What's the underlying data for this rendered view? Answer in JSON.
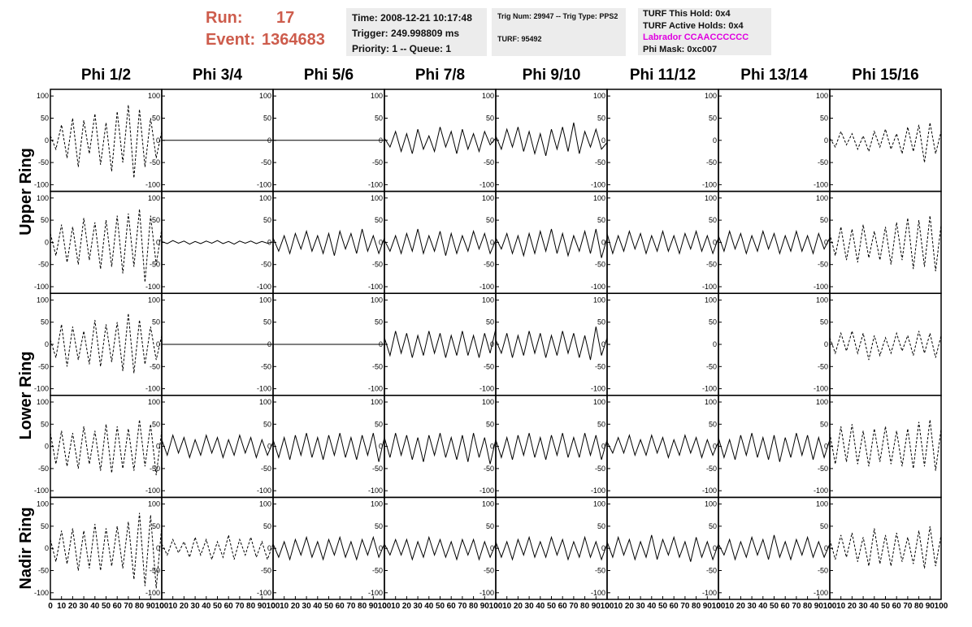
{
  "header": {
    "run_label": "Run:",
    "run": "17",
    "event_label": "Event:",
    "event": "1364683",
    "time": "Time: 2008-12-21 10:17:48",
    "trigger": "Trigger: 249.998809 ms",
    "priority": "Priority: 1 -- Queue: 1",
    "trig_num": "Trig Num: 29947 -- Trig Type: PPS2",
    "turf": "TURF: 95492",
    "hold": "TURF This Hold: 0x4",
    "active_holds": "TURF Active Holds: 0x4",
    "labrador": "Labrador CCAACCCCCC",
    "phi_mask": "Phi Mask: 0xc007"
  },
  "ring_labels": [
    "Upper Ring",
    "Lower Ring",
    "Nadir Ring"
  ],
  "chart_data": {
    "type": "line",
    "columns": [
      "Phi 1/2",
      "Phi 3/4",
      "Phi 5/6",
      "Phi 7/8",
      "Phi 9/10",
      "Phi 11/12",
      "Phi 13/14",
      "Phi 15/16"
    ],
    "xlim": [
      0,
      100
    ],
    "ylim": [
      -115,
      115
    ],
    "xticks": [
      0,
      10,
      20,
      30,
      40,
      50,
      60,
      70,
      80,
      90,
      100
    ],
    "yticks": [
      -100,
      -50,
      0,
      50,
      100
    ],
    "x": [
      0,
      5,
      10,
      15,
      20,
      25,
      30,
      35,
      40,
      45,
      50,
      55,
      60,
      65,
      70,
      75,
      80,
      85,
      90,
      95,
      100
    ],
    "panels": [
      [
        {
          "style": "dashed",
          "values": [
            10,
            -20,
            35,
            -40,
            50,
            -60,
            45,
            -30,
            60,
            -55,
            40,
            -70,
            65,
            -50,
            80,
            -85,
            70,
            -60,
            50,
            -40,
            20
          ]
        },
        {
          "style": "solid",
          "values": [
            0,
            0,
            0,
            0,
            0,
            0,
            0,
            0,
            0,
            0,
            0,
            0,
            0,
            0,
            0,
            0,
            0,
            0,
            0,
            0,
            0
          ]
        },
        {
          "style": "solid",
          "values": [
            0,
            0,
            0,
            0,
            0,
            0,
            0,
            0,
            0,
            0,
            0,
            0,
            0,
            0,
            0,
            0,
            0,
            0,
            0,
            0,
            0
          ]
        },
        {
          "style": "solid",
          "values": [
            5,
            -15,
            20,
            -25,
            15,
            -30,
            25,
            -20,
            10,
            -25,
            30,
            -15,
            20,
            -30,
            25,
            -20,
            15,
            -25,
            20,
            -10,
            5
          ]
        },
        {
          "style": "solid",
          "values": [
            10,
            -20,
            25,
            -15,
            30,
            -25,
            20,
            -30,
            15,
            -35,
            25,
            -20,
            30,
            -25,
            40,
            -30,
            20,
            -15,
            25,
            -20,
            -5
          ]
        },
        {
          "style": "solid",
          "values": [
            null,
            null,
            null,
            null,
            null,
            null,
            null,
            null,
            null,
            null,
            null,
            null,
            null,
            null,
            null,
            null,
            null,
            null,
            null,
            null,
            null
          ]
        },
        {
          "style": "solid",
          "values": [
            null,
            null,
            null,
            null,
            null,
            null,
            null,
            null,
            null,
            null,
            null,
            null,
            null,
            null,
            null,
            null,
            null,
            null,
            null,
            null,
            null
          ]
        },
        {
          "style": "dashed",
          "values": [
            5,
            -15,
            20,
            -10,
            15,
            -20,
            10,
            -25,
            20,
            -15,
            25,
            -20,
            15,
            -30,
            30,
            -25,
            35,
            -50,
            40,
            -30,
            20
          ]
        }
      ],
      [
        {
          "style": "dashed",
          "values": [
            20,
            -30,
            40,
            -45,
            35,
            -50,
            55,
            -40,
            45,
            -60,
            50,
            -55,
            60,
            -70,
            65,
            -55,
            75,
            -90,
            60,
            -50,
            30
          ]
        },
        {
          "style": "solid",
          "values": [
            2,
            -3,
            4,
            -2,
            3,
            -4,
            2,
            -3,
            3,
            -2,
            4,
            -3,
            2,
            -4,
            3,
            -2,
            3,
            -3,
            2,
            -2,
            1
          ]
        },
        {
          "style": "solid",
          "values": [
            10,
            -20,
            15,
            -25,
            20,
            -15,
            25,
            -20,
            15,
            -25,
            20,
            -30,
            25,
            -15,
            20,
            -25,
            30,
            -20,
            15,
            -25,
            10
          ]
        },
        {
          "style": "solid",
          "values": [
            5,
            -20,
            15,
            -25,
            20,
            -20,
            30,
            -25,
            15,
            -20,
            25,
            -30,
            20,
            -25,
            15,
            -20,
            25,
            -15,
            20,
            -25,
            5
          ]
        },
        {
          "style": "solid",
          "values": [
            10,
            -15,
            20,
            -25,
            15,
            -30,
            20,
            -25,
            25,
            -20,
            30,
            -25,
            20,
            -30,
            15,
            -20,
            25,
            -25,
            30,
            -35,
            10
          ]
        },
        {
          "style": "solid",
          "values": [
            20,
            -25,
            15,
            -20,
            25,
            -15,
            20,
            -25,
            15,
            -20,
            25,
            -20,
            15,
            -25,
            20,
            -15,
            25,
            -20,
            15,
            -25,
            10
          ]
        },
        {
          "style": "solid",
          "values": [
            15,
            -20,
            25,
            -15,
            20,
            -25,
            15,
            -20,
            25,
            -15,
            20,
            -25,
            15,
            -20,
            25,
            -20,
            15,
            -25,
            20,
            -15,
            10
          ]
        },
        {
          "style": "dashed",
          "values": [
            20,
            -30,
            35,
            -40,
            30,
            -45,
            40,
            -35,
            25,
            -40,
            35,
            -50,
            45,
            -40,
            55,
            -60,
            50,
            -55,
            60,
            -65,
            40
          ]
        }
      ],
      [
        {
          "style": "dashed",
          "values": [
            10,
            -30,
            45,
            -50,
            40,
            -35,
            30,
            -45,
            55,
            -50,
            45,
            -40,
            50,
            -60,
            70,
            -65,
            55,
            -45,
            40,
            -35,
            20
          ]
        },
        {
          "style": "solid",
          "values": [
            0,
            0,
            0,
            0,
            0,
            0,
            0,
            0,
            0,
            0,
            0,
            0,
            0,
            0,
            0,
            0,
            0,
            0,
            0,
            0,
            0
          ]
        },
        {
          "style": "solid",
          "values": [
            0,
            0,
            0,
            0,
            0,
            0,
            0,
            0,
            0,
            0,
            0,
            0,
            0,
            0,
            0,
            0,
            0,
            0,
            0,
            0,
            0
          ]
        },
        {
          "style": "solid",
          "values": [
            15,
            -25,
            30,
            -20,
            25,
            -30,
            20,
            -25,
            30,
            -20,
            25,
            -30,
            20,
            -25,
            30,
            -25,
            20,
            -30,
            25,
            -20,
            35
          ]
        },
        {
          "style": "solid",
          "values": [
            10,
            -20,
            25,
            -30,
            20,
            -25,
            30,
            -20,
            25,
            -30,
            20,
            -25,
            30,
            -20,
            25,
            -30,
            20,
            -35,
            40,
            -25,
            15
          ]
        },
        {
          "style": "solid",
          "values": [
            null,
            null,
            null,
            null,
            null,
            null,
            null,
            null,
            null,
            null,
            null,
            null,
            null,
            null,
            null,
            null,
            null,
            null,
            null,
            null,
            null
          ]
        },
        {
          "style": "solid",
          "values": [
            null,
            null,
            null,
            null,
            null,
            null,
            null,
            null,
            null,
            null,
            null,
            null,
            null,
            null,
            null,
            null,
            null,
            null,
            null,
            null,
            null
          ]
        },
        {
          "style": "dashed",
          "values": [
            15,
            -20,
            25,
            -15,
            30,
            -20,
            25,
            -35,
            20,
            -25,
            15,
            -20,
            25,
            -15,
            20,
            -25,
            30,
            -20,
            25,
            -30,
            20
          ]
        }
      ],
      [
        {
          "style": "dashed",
          "values": [
            30,
            -40,
            35,
            -45,
            30,
            -50,
            45,
            -40,
            35,
            -55,
            50,
            -60,
            45,
            -50,
            40,
            -55,
            60,
            -45,
            50,
            -65,
            35
          ]
        },
        {
          "style": "solid",
          "values": [
            15,
            -20,
            25,
            -15,
            20,
            -25,
            15,
            -20,
            25,
            -15,
            20,
            -25,
            15,
            -20,
            25,
            -15,
            20,
            -25,
            15,
            -20,
            10
          ]
        },
        {
          "style": "solid",
          "values": [
            15,
            -25,
            20,
            -30,
            25,
            -20,
            30,
            -25,
            20,
            -30,
            25,
            -20,
            30,
            -25,
            20,
            -30,
            25,
            -20,
            30,
            -35,
            20
          ]
        },
        {
          "style": "solid",
          "values": [
            20,
            -25,
            30,
            -20,
            25,
            -30,
            20,
            -35,
            25,
            -20,
            30,
            -25,
            20,
            -30,
            25,
            -35,
            30,
            -25,
            20,
            -40,
            15
          ]
        },
        {
          "style": "solid",
          "values": [
            15,
            -25,
            20,
            -30,
            25,
            -20,
            30,
            -25,
            20,
            -30,
            25,
            -20,
            30,
            -25,
            20,
            -25,
            30,
            -20,
            25,
            -30,
            15
          ]
        },
        {
          "style": "solid",
          "values": [
            10,
            -15,
            20,
            -15,
            25,
            -20,
            15,
            -20,
            25,
            -15,
            20,
            -25,
            15,
            -20,
            25,
            -15,
            20,
            -25,
            15,
            -20,
            10
          ]
        },
        {
          "style": "solid",
          "values": [
            20,
            -25,
            15,
            -30,
            25,
            -20,
            30,
            -25,
            20,
            -30,
            25,
            -35,
            20,
            -25,
            30,
            -20,
            25,
            -30,
            20,
            -25,
            15
          ]
        },
        {
          "style": "dashed",
          "values": [
            30,
            -40,
            45,
            -35,
            50,
            -40,
            35,
            -45,
            40,
            -35,
            45,
            -40,
            35,
            -45,
            40,
            -50,
            55,
            -45,
            60,
            -55,
            40
          ]
        }
      ],
      [
        {
          "style": "dashed",
          "values": [
            20,
            -30,
            40,
            -35,
            45,
            -50,
            40,
            -45,
            55,
            -50,
            45,
            -40,
            50,
            -45,
            60,
            -70,
            80,
            -85,
            75,
            -90,
            50
          ]
        },
        {
          "style": "dashed",
          "values": [
            10,
            -15,
            20,
            -10,
            15,
            -20,
            25,
            -15,
            20,
            -25,
            15,
            -20,
            30,
            -25,
            20,
            -15,
            25,
            -20,
            15,
            -25,
            10
          ]
        },
        {
          "style": "solid",
          "values": [
            10,
            -20,
            15,
            -25,
            20,
            -15,
            25,
            -20,
            15,
            -25,
            20,
            -15,
            25,
            -20,
            15,
            -25,
            20,
            -15,
            25,
            -20,
            10
          ]
        },
        {
          "style": "solid",
          "values": [
            10,
            -15,
            20,
            -15,
            20,
            -25,
            15,
            -20,
            25,
            -15,
            20,
            -20,
            15,
            -25,
            20,
            -15,
            20,
            -25,
            15,
            -20,
            10
          ]
        },
        {
          "style": "solid",
          "values": [
            15,
            -20,
            15,
            -25,
            20,
            -15,
            25,
            -20,
            15,
            -20,
            25,
            -15,
            20,
            -25,
            15,
            -20,
            25,
            -20,
            15,
            -25,
            10
          ]
        },
        {
          "style": "solid",
          "values": [
            15,
            -20,
            25,
            -15,
            20,
            -25,
            15,
            -20,
            30,
            -25,
            20,
            -15,
            25,
            -20,
            15,
            -30,
            25,
            -20,
            15,
            -25,
            10
          ]
        },
        {
          "style": "solid",
          "values": [
            10,
            -15,
            20,
            -25,
            15,
            -20,
            25,
            -15,
            20,
            -25,
            30,
            -20,
            15,
            -25,
            20,
            -15,
            25,
            -20,
            15,
            -20,
            10
          ]
        },
        {
          "style": "dashed",
          "values": [
            20,
            -25,
            30,
            -20,
            35,
            -30,
            25,
            -40,
            45,
            -35,
            30,
            -40,
            35,
            -30,
            25,
            -35,
            40,
            -45,
            50,
            -40,
            30
          ]
        }
      ]
    ]
  }
}
